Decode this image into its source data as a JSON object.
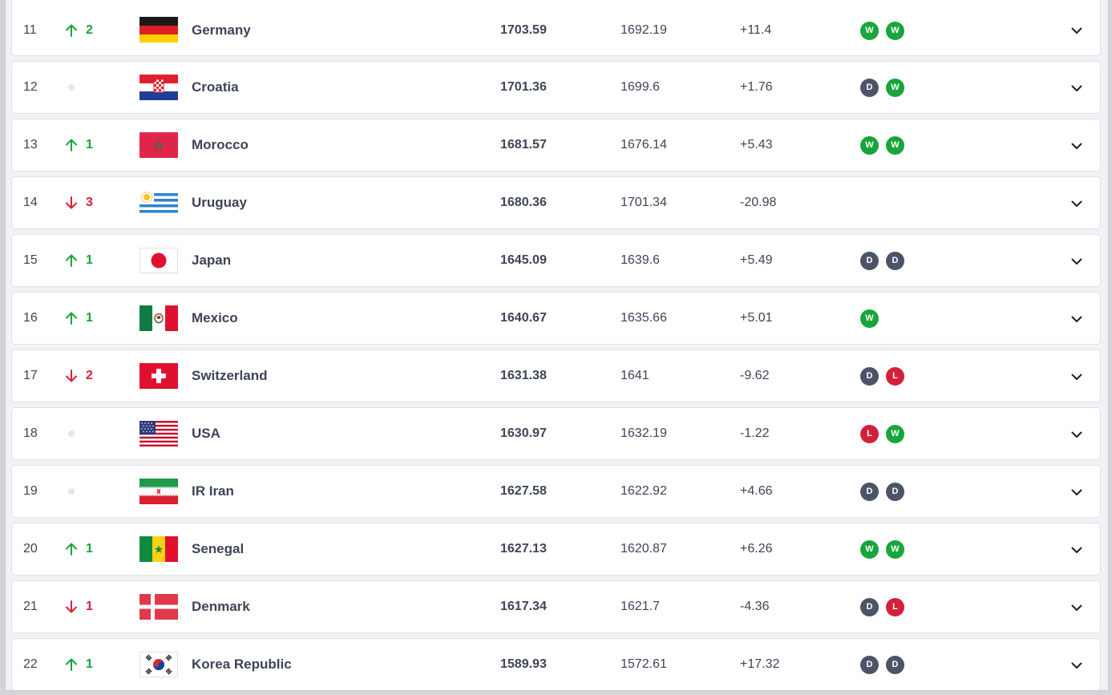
{
  "rows": [
    {
      "rank": "11",
      "move": "up",
      "moveText": "2",
      "flag": "germany",
      "name": "Germany",
      "points": "1703.59",
      "prev": "1692.19",
      "diff": "+11.4",
      "results": [
        "W",
        "W"
      ]
    },
    {
      "rank": "12",
      "move": "none",
      "moveText": "",
      "flag": "croatia",
      "name": "Croatia",
      "points": "1701.36",
      "prev": "1699.6",
      "diff": "+1.76",
      "results": [
        "D",
        "W"
      ]
    },
    {
      "rank": "13",
      "move": "up",
      "moveText": "1",
      "flag": "morocco",
      "name": "Morocco",
      "points": "1681.57",
      "prev": "1676.14",
      "diff": "+5.43",
      "results": [
        "W",
        "W"
      ]
    },
    {
      "rank": "14",
      "move": "down",
      "moveText": "3",
      "flag": "uruguay",
      "name": "Uruguay",
      "points": "1680.36",
      "prev": "1701.34",
      "diff": "-20.98",
      "results": []
    },
    {
      "rank": "15",
      "move": "up",
      "moveText": "1",
      "flag": "japan",
      "name": "Japan",
      "points": "1645.09",
      "prev": "1639.6",
      "diff": "+5.49",
      "results": [
        "D",
        "D"
      ]
    },
    {
      "rank": "16",
      "move": "up",
      "moveText": "1",
      "flag": "mexico",
      "name": "Mexico",
      "points": "1640.67",
      "prev": "1635.66",
      "diff": "+5.01",
      "results": [
        "W"
      ]
    },
    {
      "rank": "17",
      "move": "down",
      "moveText": "2",
      "flag": "switzerland",
      "name": "Switzerland",
      "points": "1631.38",
      "prev": "1641",
      "diff": "-9.62",
      "results": [
        "D",
        "L"
      ]
    },
    {
      "rank": "18",
      "move": "none",
      "moveText": "",
      "flag": "usa",
      "name": "USA",
      "points": "1630.97",
      "prev": "1632.19",
      "diff": "-1.22",
      "results": [
        "L",
        "W"
      ]
    },
    {
      "rank": "19",
      "move": "none",
      "moveText": "",
      "flag": "iran",
      "name": "IR Iran",
      "points": "1627.58",
      "prev": "1622.92",
      "diff": "+4.66",
      "results": [
        "D",
        "D"
      ]
    },
    {
      "rank": "20",
      "move": "up",
      "moveText": "1",
      "flag": "senegal",
      "name": "Senegal",
      "points": "1627.13",
      "prev": "1620.87",
      "diff": "+6.26",
      "results": [
        "W",
        "W"
      ]
    },
    {
      "rank": "21",
      "move": "down",
      "moveText": "1",
      "flag": "denmark",
      "name": "Denmark",
      "points": "1617.34",
      "prev": "1621.7",
      "diff": "-4.36",
      "results": [
        "D",
        "L"
      ]
    },
    {
      "rank": "22",
      "move": "up",
      "moveText": "1",
      "flag": "korea",
      "name": "Korea Republic",
      "points": "1589.93",
      "prev": "1572.61",
      "diff": "+17.32",
      "results": [
        "D",
        "D"
      ]
    }
  ],
  "colors": {
    "up": "#18a53b",
    "down": "#d4213a",
    "win": "#18a53b",
    "draw": "#4c5467",
    "loss": "#d4213a"
  }
}
